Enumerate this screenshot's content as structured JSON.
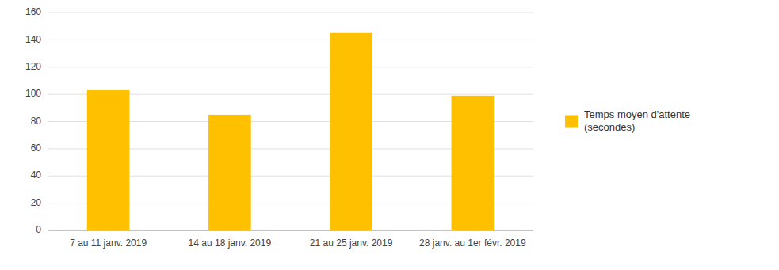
{
  "chart_data": {
    "type": "bar",
    "categories": [
      "7 au 11 janv. 2019",
      "14 au 18 janv. 2019",
      "21 au 25 janv. 2019",
      "28 janv. au 1er févr. 2019"
    ],
    "series": [
      {
        "name": "Temps moyen d'attente\n(secondes)",
        "color": "#FFC000",
        "values": [
          103,
          85,
          145,
          99
        ]
      }
    ],
    "ylim": [
      0,
      160
    ],
    "yticks": [
      0,
      20,
      40,
      60,
      80,
      100,
      120,
      140,
      160
    ],
    "grid": true,
    "legend": "right"
  }
}
